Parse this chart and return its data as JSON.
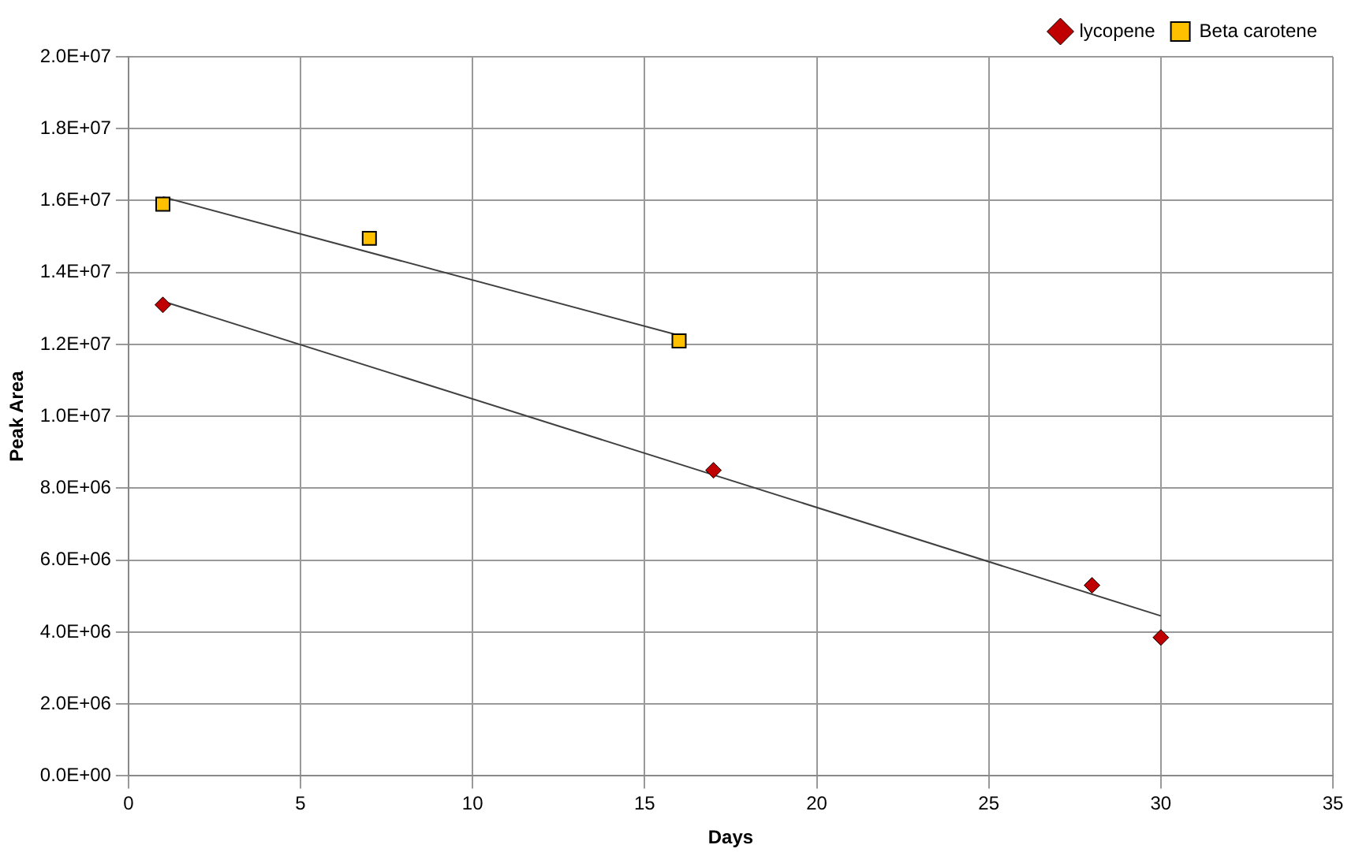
{
  "chart_data": {
    "type": "scatter",
    "xlabel": "Days",
    "ylabel": "Peak Area",
    "series": [
      {
        "name": "lycopene",
        "type": "scatter",
        "marker": "diamond",
        "color": "#c00000",
        "x": [
          1,
          17,
          28,
          30
        ],
        "values": [
          13100000,
          8500000,
          5300000,
          3850000
        ]
      },
      {
        "name": "Beta carotene",
        "type": "scatter",
        "marker": "square",
        "color": "#ffc000",
        "x": [
          1,
          7,
          16
        ],
        "values": [
          15900000,
          14950000,
          12100000
        ]
      },
      {
        "type": "line",
        "color": "#404040",
        "x": [
          1,
          16
        ],
        "values": [
          16100000,
          12250000
        ],
        "marker": "none"
      },
      {
        "type": "line",
        "color": "#404040",
        "x": [
          1,
          30
        ],
        "values": [
          13200000,
          4450000
        ],
        "marker": "none"
      }
    ],
    "xlim": [
      0,
      35
    ],
    "xticks": [
      0,
      5,
      10,
      15,
      20,
      25,
      30,
      35
    ],
    "ylim": [
      0,
      20000000
    ],
    "yticks": [
      {
        "value": 0,
        "label": "0.0E+00"
      },
      {
        "value": 2000000,
        "label": "2.0E+06"
      },
      {
        "value": 4000000,
        "label": "4.0E+06"
      },
      {
        "value": 6000000,
        "label": "6.0E+06"
      },
      {
        "value": 8000000,
        "label": "8.0E+06"
      },
      {
        "value": 10000000,
        "label": "1.0E+07"
      },
      {
        "value": 12000000,
        "label": "1.2E+07"
      },
      {
        "value": 14000000,
        "label": "1.4E+07"
      },
      {
        "value": 16000000,
        "label": "1.6E+07"
      },
      {
        "value": 18000000,
        "label": "1.8E+07"
      },
      {
        "value": 20000000,
        "label": "2.0E+07"
      }
    ],
    "grid": true,
    "legend": "top right"
  }
}
